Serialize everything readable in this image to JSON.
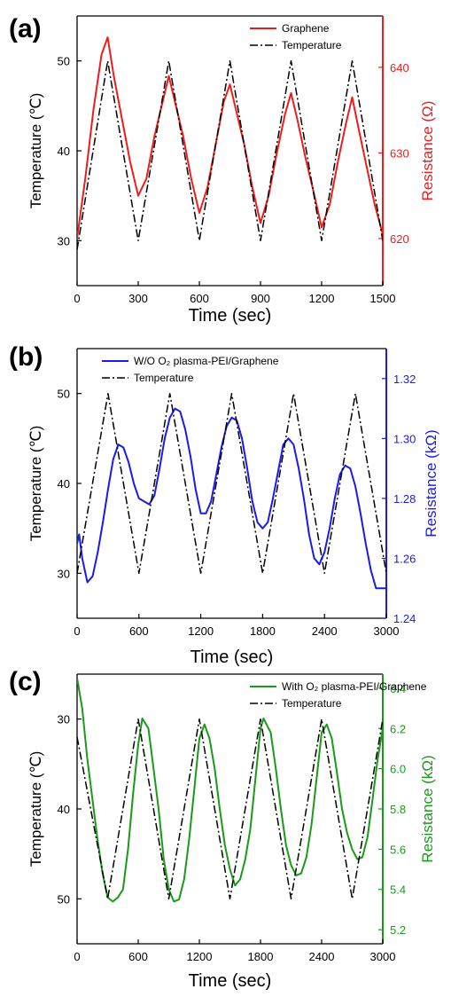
{
  "chart_data": [
    {
      "panel_label": "(a)",
      "type": "line",
      "xlabel": "Time (sec)",
      "ylabel_left": "Temperature (℃)",
      "ylabel_right": "Resistance (Ω)",
      "xlim": [
        0,
        1500
      ],
      "ylim_left": [
        25,
        55
      ],
      "ylim_right": [
        614.5,
        646
      ],
      "x_ticks": [
        0,
        300,
        600,
        900,
        1200,
        1500
      ],
      "y_left_ticks": [
        30,
        40,
        50
      ],
      "y_right_ticks": [
        620,
        630,
        640
      ],
      "colors": {
        "resistance": "#ee1c1c",
        "temperature": "#000000",
        "right_axis": "#ee1c1c"
      },
      "legend_position": "top-right",
      "series": [
        {
          "name": "Graphene",
          "axis": "right",
          "style": "solid",
          "x": [
            0,
            40,
            80,
            120,
            150,
            180,
            220,
            260,
            300,
            340,
            380,
            420,
            450,
            480,
            520,
            560,
            600,
            640,
            680,
            720,
            750,
            780,
            820,
            860,
            900,
            940,
            980,
            1020,
            1050,
            1080,
            1120,
            1160,
            1200,
            1240,
            1280,
            1320,
            1350,
            1380,
            1420,
            1460,
            1500
          ],
          "y": [
            620,
            627,
            635,
            641.5,
            643.5,
            639,
            634,
            629,
            625,
            627,
            632,
            636,
            639,
            636,
            632,
            627,
            623,
            626,
            631,
            636,
            638,
            635,
            631,
            626,
            621.8,
            625,
            630,
            634.5,
            637,
            634,
            629.5,
            625.5,
            621.3,
            624,
            629,
            633.5,
            636.5,
            633,
            628.5,
            624,
            620.5
          ]
        },
        {
          "name": "Temperature",
          "axis": "left",
          "style": "dashdot",
          "x": [
            0,
            150,
            300,
            450,
            600,
            750,
            900,
            1050,
            1200,
            1350,
            1500
          ],
          "y": [
            29,
            50,
            30,
            50,
            30,
            50,
            30,
            50,
            30,
            50,
            30
          ]
        }
      ]
    },
    {
      "panel_label": "(b)",
      "type": "line",
      "xlabel": "Time (sec)",
      "ylabel_left": "Temperature (℃)",
      "ylabel_right": "Resistance (kΩ)",
      "xlim": [
        0,
        3000
      ],
      "ylim_left": [
        25,
        55
      ],
      "ylim_right": [
        1.24,
        1.33
      ],
      "x_ticks": [
        0,
        600,
        1200,
        1800,
        2400,
        3000
      ],
      "y_left_ticks": [
        30,
        40,
        50
      ],
      "y_right_ticks": [
        1.24,
        1.26,
        1.28,
        1.3,
        1.32
      ],
      "y_right_tick_labels": [
        "1.24",
        "1.26",
        "1.28",
        "1.30",
        "1.32"
      ],
      "colors": {
        "resistance": "#1a1aee",
        "temperature": "#000000",
        "right_axis": "#1a1aee"
      },
      "legend_position": "top-left",
      "series": [
        {
          "name": "W/O O₂ plasma-PEI/Graphene",
          "axis": "right",
          "style": "solid",
          "x": [
            0,
            20,
            50,
            100,
            150,
            200,
            250,
            300,
            350,
            400,
            450,
            500,
            550,
            600,
            650,
            700,
            750,
            800,
            850,
            900,
            950,
            1000,
            1050,
            1100,
            1150,
            1200,
            1250,
            1300,
            1350,
            1400,
            1450,
            1500,
            1550,
            1600,
            1650,
            1700,
            1750,
            1800,
            1850,
            1900,
            1950,
            2000,
            2050,
            2100,
            2150,
            2200,
            2250,
            2300,
            2350,
            2400,
            2450,
            2500,
            2550,
            2600,
            2650,
            2700,
            2750,
            2800,
            2850,
            2900,
            2950,
            3000
          ],
          "y": [
            1.265,
            1.268,
            1.26,
            1.252,
            1.254,
            1.262,
            1.272,
            1.283,
            1.293,
            1.298,
            1.297,
            1.292,
            1.285,
            1.28,
            1.279,
            1.278,
            1.281,
            1.29,
            1.3,
            1.307,
            1.31,
            1.309,
            1.303,
            1.294,
            1.283,
            1.275,
            1.275,
            1.279,
            1.288,
            1.297,
            1.304,
            1.307,
            1.306,
            1.3,
            1.29,
            1.279,
            1.272,
            1.27,
            1.272,
            1.28,
            1.289,
            1.298,
            1.3,
            1.298,
            1.29,
            1.28,
            1.268,
            1.26,
            1.258,
            1.262,
            1.27,
            1.28,
            1.288,
            1.291,
            1.29,
            1.284,
            1.275,
            1.265,
            1.256,
            1.25,
            1.25,
            1.25
          ]
        },
        {
          "name": "Temperature",
          "axis": "left",
          "style": "dashdot",
          "x": [
            0,
            300,
            600,
            900,
            1200,
            1500,
            1800,
            2100,
            2400,
            2700,
            3000
          ],
          "y": [
            30,
            50,
            30,
            50,
            30,
            50,
            30,
            50,
            30,
            50,
            30
          ]
        }
      ]
    },
    {
      "panel_label": "(c)",
      "type": "line",
      "xlabel": "Time (sec)",
      "ylabel_left": "Temperature (℃)",
      "ylabel_right": "Resistance (kΩ)",
      "xlim": [
        0,
        3000
      ],
      "ylim_left": [
        25,
        55
      ],
      "ylim_left_reversed": true,
      "ylim_right": [
        5.13,
        6.47
      ],
      "x_ticks": [
        0,
        600,
        1200,
        1800,
        2400,
        3000
      ],
      "y_left_ticks": [
        30,
        40,
        50
      ],
      "y_right_ticks": [
        5.2,
        5.4,
        5.6,
        5.8,
        6.0,
        6.2,
        6.4
      ],
      "y_right_tick_labels": [
        "5.2",
        "5.4",
        "5.6",
        "5.8",
        "6.0",
        "6.2",
        "6.4"
      ],
      "colors": {
        "resistance": "#1a9a1a",
        "temperature": "#000000",
        "right_axis": "#1a9a1a"
      },
      "legend_position": "top-right",
      "series": [
        {
          "name": "With O₂ plasma-PEI/Graphene",
          "axis": "right",
          "style": "solid",
          "x": [
            0,
            50,
            100,
            150,
            200,
            250,
            300,
            350,
            400,
            450,
            500,
            550,
            600,
            640,
            700,
            750,
            800,
            850,
            900,
            950,
            1000,
            1050,
            1100,
            1150,
            1200,
            1250,
            1300,
            1350,
            1400,
            1450,
            1500,
            1550,
            1600,
            1650,
            1700,
            1750,
            1800,
            1830,
            1900,
            1950,
            2000,
            2050,
            2100,
            2150,
            2200,
            2250,
            2300,
            2350,
            2400,
            2450,
            2500,
            2550,
            2600,
            2650,
            2700,
            2750,
            2800,
            2850,
            2900,
            2950,
            3000
          ],
          "y": [
            6.45,
            6.3,
            6.05,
            5.85,
            5.65,
            5.48,
            5.36,
            5.34,
            5.36,
            5.4,
            5.6,
            5.88,
            6.12,
            6.25,
            6.2,
            6.0,
            5.8,
            5.55,
            5.4,
            5.34,
            5.35,
            5.45,
            5.65,
            5.9,
            6.15,
            6.22,
            6.15,
            6.0,
            5.8,
            5.62,
            5.5,
            5.42,
            5.45,
            5.55,
            5.7,
            5.95,
            6.2,
            6.25,
            6.18,
            6.0,
            5.8,
            5.62,
            5.52,
            5.47,
            5.48,
            5.56,
            5.72,
            5.95,
            6.18,
            6.22,
            6.15,
            5.98,
            5.8,
            5.68,
            5.6,
            5.55,
            5.56,
            5.66,
            5.85,
            6.05,
            6.2
          ]
        },
        {
          "name": "Temperature",
          "axis": "left",
          "style": "dashdot",
          "x": [
            0,
            300,
            600,
            900,
            1200,
            1500,
            1800,
            2100,
            2400,
            2700,
            3000
          ],
          "y": [
            32,
            50,
            30,
            50,
            30,
            50,
            30,
            50,
            30,
            50,
            30
          ]
        }
      ]
    }
  ]
}
